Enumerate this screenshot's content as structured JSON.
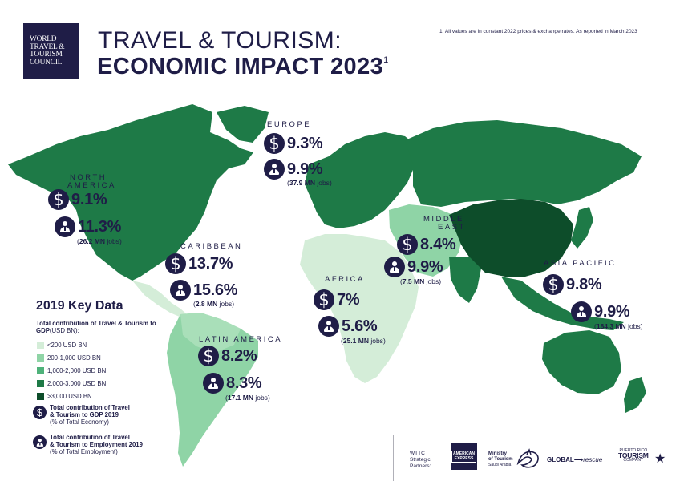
{
  "header": {
    "logo_lines": [
      "WORLD",
      "TRAVEL &",
      "TOURISM",
      "COUNCIL"
    ],
    "title_line1": "TRAVEL & TOURISM:",
    "title_line2": "ECONOMIC IMPACT 2023",
    "title_superscript": "1",
    "footnote": "1. All values are in constant 2022 prices & exchange rates. As reported in March 2023"
  },
  "regions": {
    "europe": {
      "name": "EUROPE",
      "gdp": "9.3%",
      "employment": "9.9%",
      "jobs_value": "37.9 MN",
      "jobs_unit": "jobs"
    },
    "north_america": {
      "name_line1": "NORTH",
      "name_line2": "AMERICA",
      "gdp": "9.1%",
      "employment": "11.3%",
      "jobs_value": "26.2 MN",
      "jobs_unit": "jobs"
    },
    "caribbean": {
      "name": "CARIBBEAN",
      "gdp": "13.7%",
      "employment": "15.6%",
      "jobs_value": "2.8 MN",
      "jobs_unit": "jobs"
    },
    "middle_east": {
      "name_line1": "MIDDLE",
      "name_line2": "EAST",
      "gdp": "8.4%",
      "employment": "9.9%",
      "jobs_value": "7.5 MN",
      "jobs_unit": "jobs"
    },
    "africa": {
      "name": "AFRICA",
      "gdp": "7%",
      "employment": "5.6%",
      "jobs_value": "25.1 MN",
      "jobs_unit": "jobs"
    },
    "asia_pacific": {
      "name": "ASIA PACIFIC",
      "gdp": "9.8%",
      "employment": "9.9%",
      "jobs_value": "184.3 MN",
      "jobs_unit": "jobs"
    },
    "latin_america": {
      "name": "LATIN AMERICA",
      "gdp": "8.2%",
      "employment": "8.3%",
      "jobs_value": "17.1 MN",
      "jobs_unit": "jobs"
    }
  },
  "key": {
    "title": "2019 Key Data",
    "subtitle": "Total contribution of Travel & Tourism to GDP",
    "subtitle_unit": "(USD BN):",
    "legend": [
      {
        "label": "<200 USD BN",
        "color": "#d4edd8"
      },
      {
        "label": "200-1,000 USD BN",
        "color": "#8fd4a6"
      },
      {
        "label": "1,000-2,000 USD BN",
        "color": "#4fb27a"
      },
      {
        "label": "2,000-3,000 USD BN",
        "color": "#1e7a47"
      },
      {
        "label": ">3,000 USD BN",
        "color": "#0d4d2a"
      }
    ],
    "gdp_item_line1": "Total contribution of Travel",
    "gdp_item_line2": "& Tourism to GDP 2019",
    "gdp_item_note": "(% of Total Economy)",
    "emp_item_line1": "Total contribution of Travel",
    "emp_item_line2": "& Tourism to Employment 2019",
    "emp_item_note": "(% of Total Employment)"
  },
  "icons": {
    "gdp": "dollar-icon",
    "employment": "person-icon"
  },
  "colors": {
    "navy": "#1f1d47"
  },
  "partners": {
    "label_line1": "WTTC",
    "label_line2": "Strategic",
    "label_line3": "Partners:",
    "amex_line1": "AMERICAN",
    "amex_line2": "EXPRESS",
    "mot_line1": "Ministry",
    "mot_line2": "of Tourism",
    "mot_line3": "Saudi Arabia",
    "global": "GLOBAL",
    "rescue": "rescue",
    "prt_line1": "PUERTO RICO",
    "prt_line2": "TOURISM",
    "prt_line3": "COMPANY"
  }
}
